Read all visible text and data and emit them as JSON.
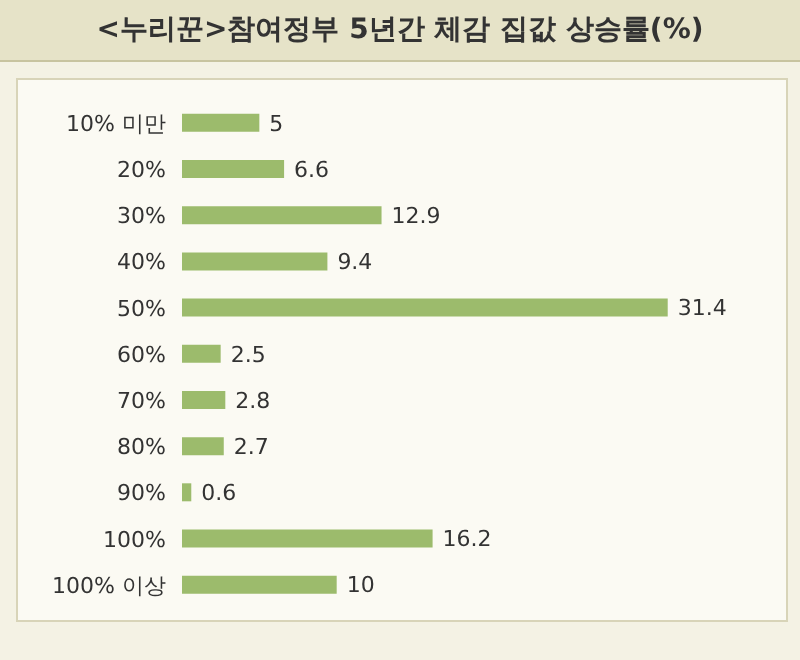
{
  "chart_data": {
    "type": "bar",
    "orientation": "horizontal",
    "title": "<누리꾼>참여정부 5년간 체감 집값 상승률(%)",
    "categories": [
      "10% 미만",
      "20%",
      "30%",
      "40%",
      "50%",
      "60%",
      "70%",
      "80%",
      "90%",
      "100%",
      "100% 이상"
    ],
    "values": [
      5,
      6.6,
      12.9,
      9.4,
      31.4,
      2.5,
      2.8,
      2.7,
      0.6,
      16.2,
      10
    ],
    "color": "#9cbb6c",
    "data_labels": true,
    "grid": false,
    "legend": false
  }
}
